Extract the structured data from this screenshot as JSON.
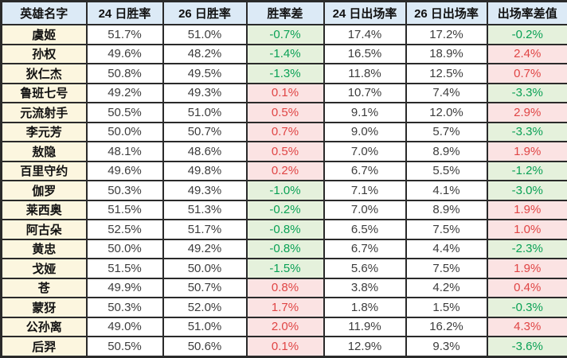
{
  "colors": {
    "header_bg": "#dceaf6",
    "hero_column_bg": "#fcf6df",
    "negative_cell_bg": "#e5f1dc",
    "negative_text": "#0aa155",
    "positive_cell_bg": "#fbe3e3",
    "positive_text": "#e04545",
    "border": "#2a2a2a",
    "body_text": "#3d3d3d"
  },
  "chart_data": {
    "type": "table",
    "title": "",
    "units": "%",
    "conditional_format": {
      "negative_values": "green text on light-green fill",
      "positive_values": "red text on light-pink fill"
    },
    "columns": [
      "英雄名字",
      "24 日胜率",
      "26 日胜率",
      "胜率差",
      "24 日出场率",
      "26 日出场率",
      "出场率差值"
    ],
    "rows": [
      {
        "hero": "虞姬",
        "win_rate_24": 51.7,
        "win_rate_26": 51.0,
        "win_rate_diff": -0.7,
        "pick_rate_24": 17.4,
        "pick_rate_26": 17.2,
        "pick_rate_diff": -0.2
      },
      {
        "hero": "孙权",
        "win_rate_24": 49.6,
        "win_rate_26": 48.2,
        "win_rate_diff": -1.4,
        "pick_rate_24": 16.5,
        "pick_rate_26": 18.9,
        "pick_rate_diff": 2.4
      },
      {
        "hero": "狄仁杰",
        "win_rate_24": 50.8,
        "win_rate_26": 49.5,
        "win_rate_diff": -1.3,
        "pick_rate_24": 11.8,
        "pick_rate_26": 12.5,
        "pick_rate_diff": 0.7
      },
      {
        "hero": "鲁班七号",
        "win_rate_24": 49.2,
        "win_rate_26": 49.3,
        "win_rate_diff": 0.1,
        "pick_rate_24": 10.7,
        "pick_rate_26": 7.4,
        "pick_rate_diff": -3.3
      },
      {
        "hero": "元流射手",
        "win_rate_24": 50.5,
        "win_rate_26": 51.0,
        "win_rate_diff": 0.5,
        "pick_rate_24": 9.1,
        "pick_rate_26": 12.0,
        "pick_rate_diff": 2.9
      },
      {
        "hero": "李元芳",
        "win_rate_24": 50.0,
        "win_rate_26": 50.7,
        "win_rate_diff": 0.7,
        "pick_rate_24": 9.0,
        "pick_rate_26": 5.7,
        "pick_rate_diff": -3.3
      },
      {
        "hero": "敖隐",
        "win_rate_24": 48.1,
        "win_rate_26": 48.6,
        "win_rate_diff": 0.5,
        "pick_rate_24": 7.0,
        "pick_rate_26": 8.9,
        "pick_rate_diff": 1.9
      },
      {
        "hero": "百里守约",
        "win_rate_24": 49.6,
        "win_rate_26": 49.8,
        "win_rate_diff": 0.2,
        "pick_rate_24": 6.7,
        "pick_rate_26": 5.5,
        "pick_rate_diff": -1.2
      },
      {
        "hero": "伽罗",
        "win_rate_24": 50.3,
        "win_rate_26": 49.3,
        "win_rate_diff": -1.0,
        "pick_rate_24": 7.1,
        "pick_rate_26": 4.1,
        "pick_rate_diff": -3.0
      },
      {
        "hero": "莱西奥",
        "win_rate_24": 51.5,
        "win_rate_26": 51.3,
        "win_rate_diff": -0.2,
        "pick_rate_24": 7.0,
        "pick_rate_26": 8.9,
        "pick_rate_diff": 1.9
      },
      {
        "hero": "阿古朵",
        "win_rate_24": 52.5,
        "win_rate_26": 51.7,
        "win_rate_diff": -0.8,
        "pick_rate_24": 6.5,
        "pick_rate_26": 7.5,
        "pick_rate_diff": 1.0
      },
      {
        "hero": "黄忠",
        "win_rate_24": 50.0,
        "win_rate_26": 49.2,
        "win_rate_diff": -0.8,
        "pick_rate_24": 6.7,
        "pick_rate_26": 4.4,
        "pick_rate_diff": -2.3
      },
      {
        "hero": "戈娅",
        "win_rate_24": 51.5,
        "win_rate_26": 50.0,
        "win_rate_diff": -1.5,
        "pick_rate_24": 5.6,
        "pick_rate_26": 7.5,
        "pick_rate_diff": 1.9
      },
      {
        "hero": "苍",
        "win_rate_24": 49.9,
        "win_rate_26": 50.7,
        "win_rate_diff": 0.8,
        "pick_rate_24": 3.8,
        "pick_rate_26": 4.2,
        "pick_rate_diff": 0.4
      },
      {
        "hero": "蒙犽",
        "win_rate_24": 50.3,
        "win_rate_26": 52.0,
        "win_rate_diff": 1.7,
        "pick_rate_24": 1.8,
        "pick_rate_26": 1.5,
        "pick_rate_diff": -0.3
      },
      {
        "hero": "公孙离",
        "win_rate_24": 49.0,
        "win_rate_26": 51.0,
        "win_rate_diff": 2.0,
        "pick_rate_24": 11.9,
        "pick_rate_26": 16.2,
        "pick_rate_diff": 4.3
      },
      {
        "hero": "后羿",
        "win_rate_24": 50.5,
        "win_rate_26": 50.6,
        "win_rate_diff": 0.1,
        "pick_rate_24": 12.9,
        "pick_rate_26": 9.3,
        "pick_rate_diff": -3.6
      }
    ]
  }
}
